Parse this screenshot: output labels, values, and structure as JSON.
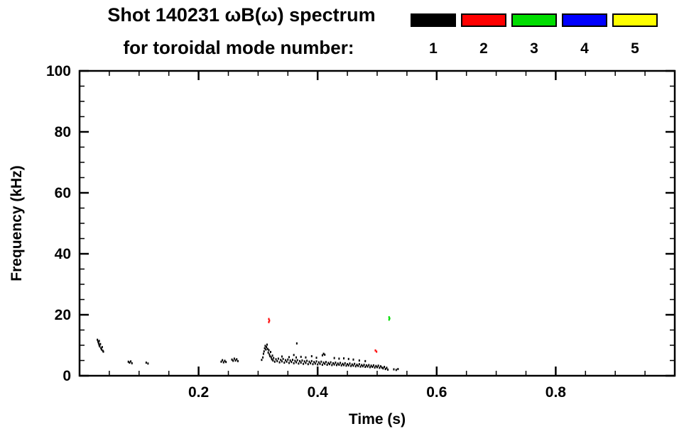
{
  "chart_data": {
    "type": "scatter",
    "title": "Shot 140231 ωB(ω) spectrum",
    "subtitle": "for toroidal mode number:",
    "xlabel": "Time (s)",
    "ylabel": "Frequency (kHz)",
    "xlim": [
      0.0,
      1.0
    ],
    "ylim": [
      0,
      100
    ],
    "grid": false,
    "xticks": {
      "major": [
        0.2,
        0.4,
        0.6,
        0.8
      ],
      "labels": [
        "0.2",
        "0.4",
        "0.6",
        "0.8"
      ],
      "minor_step": 0.05
    },
    "yticks": {
      "major": [
        0,
        20,
        40,
        60,
        80,
        100
      ],
      "labels": [
        "0",
        "20",
        "40",
        "60",
        "80",
        "100"
      ],
      "minor_step": 5
    },
    "legend": {
      "position": "top-right",
      "entries": [
        {
          "label": "1",
          "color": "#000000"
        },
        {
          "label": "2",
          "color": "#ff0000"
        },
        {
          "label": "3",
          "color": "#00dd00"
        },
        {
          "label": "4",
          "color": "#0000ff"
        },
        {
          "label": "5",
          "color": "#ffff00"
        }
      ]
    },
    "series": [
      {
        "name": "toroidal mode n=1",
        "color": "#000000",
        "points": [
          [
            0.03,
            11.8
          ],
          [
            0.031,
            11.2
          ],
          [
            0.032,
            10.6
          ],
          [
            0.033,
            11.4
          ],
          [
            0.033,
            10.0
          ],
          [
            0.034,
            9.6
          ],
          [
            0.035,
            10.4
          ],
          [
            0.036,
            9.0
          ],
          [
            0.037,
            8.6
          ],
          [
            0.038,
            9.4
          ],
          [
            0.039,
            8.2
          ],
          [
            0.04,
            7.9
          ],
          [
            0.082,
            4.6
          ],
          [
            0.084,
            4.3
          ],
          [
            0.086,
            4.7
          ],
          [
            0.088,
            4.1
          ],
          [
            0.112,
            4.3
          ],
          [
            0.115,
            4.0
          ],
          [
            0.238,
            4.6
          ],
          [
            0.24,
            5.1
          ],
          [
            0.242,
            4.4
          ],
          [
            0.244,
            4.9
          ],
          [
            0.246,
            4.5
          ],
          [
            0.256,
            5.3
          ],
          [
            0.258,
            4.9
          ],
          [
            0.26,
            5.6
          ],
          [
            0.262,
            5.0
          ],
          [
            0.264,
            5.4
          ],
          [
            0.266,
            4.8
          ],
          [
            0.306,
            5.2
          ],
          [
            0.308,
            6.0
          ],
          [
            0.309,
            7.2
          ],
          [
            0.31,
            8.0
          ],
          [
            0.311,
            9.0
          ],
          [
            0.312,
            9.8
          ],
          [
            0.313,
            8.6
          ],
          [
            0.314,
            9.4
          ],
          [
            0.315,
            10.2
          ],
          [
            0.316,
            8.8
          ],
          [
            0.317,
            7.6
          ],
          [
            0.318,
            8.4
          ],
          [
            0.319,
            7.0
          ],
          [
            0.32,
            6.4
          ],
          [
            0.321,
            7.8
          ],
          [
            0.322,
            6.0
          ],
          [
            0.323,
            5.4
          ],
          [
            0.324,
            6.6
          ],
          [
            0.325,
            5.0
          ],
          [
            0.326,
            5.8
          ],
          [
            0.328,
            4.6
          ],
          [
            0.33,
            5.4
          ],
          [
            0.332,
            4.8
          ],
          [
            0.334,
            5.6
          ],
          [
            0.336,
            4.4
          ],
          [
            0.338,
            5.2
          ],
          [
            0.34,
            4.7
          ],
          [
            0.342,
            5.5
          ],
          [
            0.344,
            4.3
          ],
          [
            0.346,
            5.1
          ],
          [
            0.348,
            4.6
          ],
          [
            0.35,
            5.3
          ],
          [
            0.352,
            4.2
          ],
          [
            0.354,
            5.0
          ],
          [
            0.356,
            4.5
          ],
          [
            0.358,
            5.2
          ],
          [
            0.36,
            4.1
          ],
          [
            0.362,
            4.9
          ],
          [
            0.364,
            4.4
          ],
          [
            0.366,
            5.1
          ],
          [
            0.368,
            4.0
          ],
          [
            0.37,
            4.8
          ],
          [
            0.372,
            4.3
          ],
          [
            0.374,
            5.0
          ],
          [
            0.376,
            3.9
          ],
          [
            0.378,
            4.7
          ],
          [
            0.38,
            4.2
          ],
          [
            0.382,
            4.9
          ],
          [
            0.384,
            3.8
          ],
          [
            0.386,
            4.6
          ],
          [
            0.388,
            4.1
          ],
          [
            0.39,
            4.8
          ],
          [
            0.392,
            3.8
          ],
          [
            0.394,
            4.5
          ],
          [
            0.396,
            4.0
          ],
          [
            0.398,
            4.7
          ],
          [
            0.4,
            3.7
          ],
          [
            0.402,
            4.4
          ],
          [
            0.404,
            3.9
          ],
          [
            0.406,
            4.6
          ],
          [
            0.408,
            3.6
          ],
          [
            0.41,
            4.3
          ],
          [
            0.412,
            3.9
          ],
          [
            0.414,
            4.5
          ],
          [
            0.416,
            3.6
          ],
          [
            0.418,
            4.2
          ],
          [
            0.42,
            3.8
          ],
          [
            0.422,
            4.4
          ],
          [
            0.424,
            3.5
          ],
          [
            0.426,
            4.1
          ],
          [
            0.428,
            3.7
          ],
          [
            0.43,
            4.3
          ],
          [
            0.432,
            3.5
          ],
          [
            0.434,
            4.0
          ],
          [
            0.436,
            3.6
          ],
          [
            0.438,
            4.2
          ],
          [
            0.44,
            3.4
          ],
          [
            0.442,
            3.9
          ],
          [
            0.444,
            3.5
          ],
          [
            0.446,
            4.1
          ],
          [
            0.448,
            3.3
          ],
          [
            0.45,
            3.8
          ],
          [
            0.452,
            3.4
          ],
          [
            0.454,
            4.0
          ],
          [
            0.456,
            3.2
          ],
          [
            0.458,
            3.7
          ],
          [
            0.46,
            3.3
          ],
          [
            0.462,
            3.9
          ],
          [
            0.464,
            3.1
          ],
          [
            0.466,
            3.6
          ],
          [
            0.468,
            3.2
          ],
          [
            0.47,
            3.8
          ],
          [
            0.472,
            3.0
          ],
          [
            0.474,
            3.5
          ],
          [
            0.476,
            3.1
          ],
          [
            0.478,
            3.6
          ],
          [
            0.48,
            2.9
          ],
          [
            0.482,
            3.4
          ],
          [
            0.484,
            3.0
          ],
          [
            0.486,
            3.5
          ],
          [
            0.488,
            2.8
          ],
          [
            0.49,
            3.3
          ],
          [
            0.492,
            2.9
          ],
          [
            0.494,
            3.4
          ],
          [
            0.496,
            2.7
          ],
          [
            0.498,
            3.2
          ],
          [
            0.5,
            2.8
          ],
          [
            0.502,
            3.3
          ],
          [
            0.504,
            2.6
          ],
          [
            0.506,
            3.1
          ],
          [
            0.508,
            2.7
          ],
          [
            0.51,
            2.4
          ],
          [
            0.512,
            2.9
          ],
          [
            0.514,
            2.2
          ],
          [
            0.516,
            2.6
          ],
          [
            0.518,
            2.0
          ],
          [
            0.34,
            6.3
          ],
          [
            0.352,
            6.1
          ],
          [
            0.36,
            6.8
          ],
          [
            0.364,
            6.0
          ],
          [
            0.372,
            6.2
          ],
          [
            0.38,
            6.0
          ],
          [
            0.39,
            6.4
          ],
          [
            0.398,
            5.9
          ],
          [
            0.408,
            6.7
          ],
          [
            0.41,
            7.2
          ],
          [
            0.412,
            6.9
          ],
          [
            0.428,
            5.8
          ],
          [
            0.436,
            5.6
          ],
          [
            0.444,
            5.7
          ],
          [
            0.452,
            5.5
          ],
          [
            0.46,
            5.3
          ],
          [
            0.47,
            5.0
          ],
          [
            0.48,
            4.8
          ],
          [
            0.365,
            10.6
          ],
          [
            0.528,
            2.1
          ],
          [
            0.532,
            1.9
          ],
          [
            0.535,
            2.2
          ]
        ]
      },
      {
        "name": "toroidal mode n=2",
        "color": "#ff0000",
        "points": [
          [
            0.318,
            18.6
          ],
          [
            0.318,
            17.6
          ],
          [
            0.319,
            18.1
          ],
          [
            0.497,
            8.3
          ],
          [
            0.499,
            7.9
          ]
        ]
      },
      {
        "name": "toroidal mode n=3",
        "color": "#00dd00",
        "points": [
          [
            0.52,
            19.2
          ],
          [
            0.52,
            18.4
          ],
          [
            0.521,
            18.8
          ]
        ]
      },
      {
        "name": "toroidal mode n=4",
        "color": "#0000ff",
        "points": []
      },
      {
        "name": "toroidal mode n=5",
        "color": "#ffff00",
        "points": []
      }
    ]
  }
}
